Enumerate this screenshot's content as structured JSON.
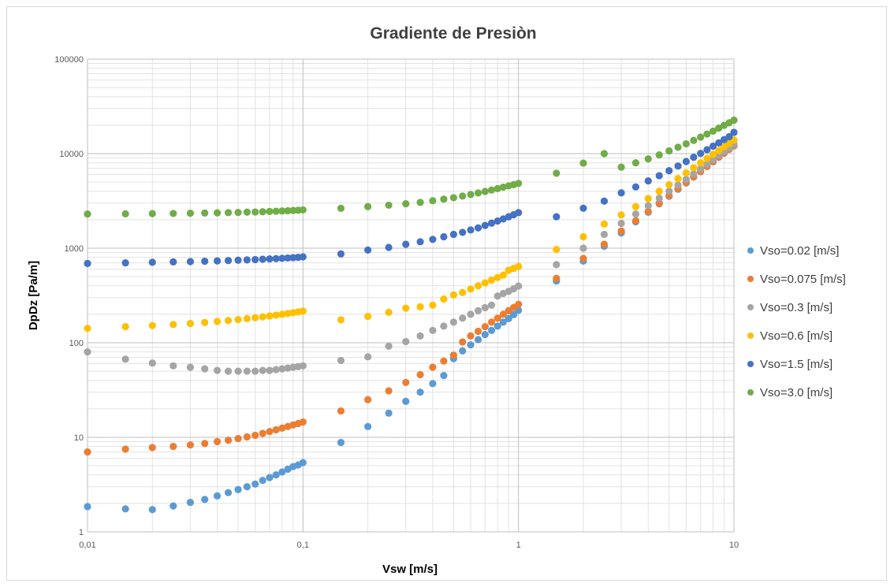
{
  "chart_data": {
    "type": "scatter",
    "title": "Gradiente de Presiòn",
    "xlabel": "Vsw [m/s]",
    "ylabel": "DpDz [Pa/m]",
    "x_scale": "log",
    "y_scale": "log",
    "xlim": [
      0.01,
      10
    ],
    "ylim": [
      1,
      100000
    ],
    "x_tick_values": [
      0.01,
      0.1,
      1,
      10
    ],
    "x_tick_labels": [
      "0,01",
      "0,1",
      "1",
      "10"
    ],
    "y_tick_values": [
      1,
      10,
      100,
      1000,
      10000,
      100000
    ],
    "y_tick_labels": [
      "1",
      "10",
      "100",
      "1000",
      "10000",
      "100000"
    ],
    "grid": "major and minor",
    "legend_position": "right",
    "x": [
      0.01,
      0.015,
      0.02,
      0.025,
      0.03,
      0.035,
      0.04,
      0.045,
      0.05,
      0.055,
      0.06,
      0.065,
      0.07,
      0.075,
      0.08,
      0.085,
      0.09,
      0.095,
      0.1,
      0.15,
      0.2,
      0.25,
      0.3,
      0.35,
      0.4,
      0.45,
      0.5,
      0.55,
      0.6,
      0.65,
      0.7,
      0.75,
      0.8,
      0.85,
      0.9,
      0.95,
      1,
      1.5,
      2,
      2.5,
      3,
      3.5,
      4,
      4.5,
      5,
      5.5,
      6,
      6.5,
      7,
      7.5,
      8,
      8.5,
      9,
      9.5,
      10
    ],
    "series": [
      {
        "name": "Vso=0.02 [m/s]",
        "color": "#5B9BD5",
        "values": [
          1.85,
          1.75,
          1.72,
          1.88,
          2.05,
          2.2,
          2.4,
          2.6,
          2.8,
          3.0,
          3.2,
          3.5,
          3.75,
          4.0,
          4.3,
          4.6,
          4.9,
          5.1,
          5.4,
          8.8,
          13,
          18,
          24,
          30,
          37,
          45,
          68,
          82,
          95,
          108,
          122,
          135,
          150,
          165,
          180,
          198,
          220,
          450,
          730,
          1050,
          1450,
          1900,
          2400,
          2950,
          3550,
          4200,
          4900,
          5650,
          6450,
          7300,
          8200,
          9150,
          10100,
          11100,
          12100
        ]
      },
      {
        "name": "Vso=0.075 [m/s]",
        "color": "#ED7D31",
        "values": [
          7.0,
          7.5,
          7.8,
          8.0,
          8.3,
          8.6,
          9.0,
          9.3,
          9.7,
          10.1,
          10.5,
          11.0,
          11.5,
          12.0,
          12.5,
          13.0,
          13.5,
          14.0,
          14.5,
          19,
          25,
          31,
          38,
          46,
          55,
          64,
          74,
          102,
          118,
          132,
          148,
          165,
          182,
          200,
          218,
          236,
          255,
          480,
          780,
          1100,
          1520,
          1950,
          2450,
          3000,
          3600,
          4250,
          4950,
          5700,
          6500,
          7350,
          8250,
          9200,
          10150,
          11150,
          12200
        ]
      },
      {
        "name": "Vso=0.3 [m/s]",
        "color": "#A5A5A5",
        "values": [
          80,
          67,
          61,
          57,
          55,
          53,
          51,
          50,
          50,
          50,
          50,
          51,
          51,
          52,
          53,
          54,
          55,
          56,
          57,
          65,
          71,
          92,
          103,
          118,
          135,
          150,
          165,
          182,
          200,
          218,
          235,
          250,
          312,
          332,
          350,
          372,
          398,
          670,
          1000,
          1400,
          1830,
          2300,
          2820,
          3380,
          4000,
          4650,
          5350,
          6100,
          6900,
          7750,
          8650,
          9600,
          10550,
          11550,
          12600
        ]
      },
      {
        "name": "Vso=0.6 [m/s]",
        "color": "#FFC000",
        "values": [
          142,
          148,
          152,
          156,
          160,
          164,
          168,
          172,
          176,
          180,
          184,
          188,
          192,
          196,
          200,
          204,
          208,
          212,
          216,
          175,
          190,
          210,
          232,
          240,
          250,
          290,
          320,
          340,
          370,
          400,
          430,
          460,
          490,
          520,
          585,
          612,
          640,
          970,
          1320,
          1800,
          2250,
          2750,
          3350,
          4000,
          4700,
          5450,
          6250,
          7100,
          8000,
          8900,
          9850,
          10800,
          11800,
          12800,
          13900
        ]
      },
      {
        "name": "Vso=1.5 [m/s]",
        "color": "#4472C4",
        "values": [
          690,
          700,
          710,
          716,
          722,
          728,
          734,
          740,
          746,
          752,
          758,
          764,
          770,
          776,
          782,
          788,
          794,
          800,
          810,
          870,
          955,
          1020,
          1100,
          1170,
          1240,
          1320,
          1400,
          1470,
          1560,
          1640,
          1740,
          1840,
          1940,
          2040,
          2150,
          2260,
          2380,
          2150,
          2650,
          3150,
          3850,
          4450,
          5150,
          5850,
          6600,
          7400,
          8250,
          9150,
          10050,
          11000,
          12000,
          13000,
          14050,
          15100,
          16800
        ]
      },
      {
        "name": "Vso=3.0 [m/s]",
        "color": "#70AD47",
        "values": [
          2300,
          2310,
          2320,
          2330,
          2345,
          2355,
          2365,
          2380,
          2390,
          2405,
          2415,
          2430,
          2445,
          2460,
          2475,
          2490,
          2505,
          2520,
          2540,
          2640,
          2750,
          2850,
          2950,
          3050,
          3180,
          3300,
          3420,
          3560,
          3700,
          3840,
          3980,
          4120,
          4270,
          4420,
          4560,
          4700,
          4850,
          6200,
          7950,
          10000,
          7200,
          8000,
          8800,
          9700,
          10700,
          11700,
          12700,
          13800,
          14950,
          16100,
          17300,
          18600,
          19900,
          21200,
          22600
        ]
      }
    ]
  }
}
